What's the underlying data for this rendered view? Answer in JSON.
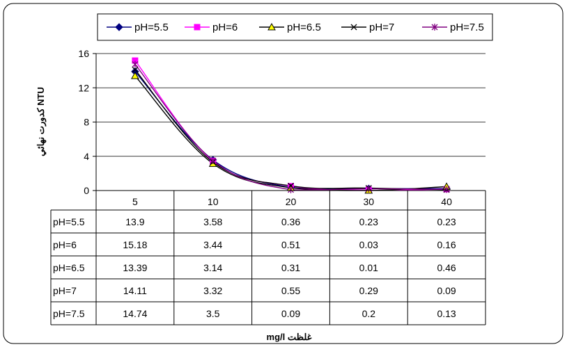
{
  "chart_data": {
    "type": "line",
    "categories": [
      "5",
      "10",
      "20",
      "30",
      "40"
    ],
    "ylabel": "NTU كدورت نهائي",
    "xlabel": "غلظت mg/l",
    "ylim": [
      0,
      16
    ],
    "yticks": [
      0,
      4,
      8,
      12,
      16
    ],
    "grid": true,
    "legend_position": "top",
    "series": [
      {
        "name": "pH=5.5",
        "values": [
          13.9,
          3.58,
          0.36,
          0.23,
          0.23
        ],
        "display": [
          "13.9",
          "3.58",
          "0.36",
          "0.23",
          "0.23"
        ],
        "color": "#000080",
        "marker": "diamond"
      },
      {
        "name": "pH=6",
        "values": [
          15.18,
          3.44,
          0.51,
          0.03,
          0.16
        ],
        "display": [
          "15.18",
          "3.44",
          "0.51",
          "0.03",
          "0.16"
        ],
        "color": "#FF00FF",
        "marker": "square"
      },
      {
        "name": "pH=6.5",
        "values": [
          13.39,
          3.14,
          0.31,
          0.01,
          0.46
        ],
        "display": [
          "13.39",
          "3.14",
          "0.31",
          "0.01",
          "0.46"
        ],
        "color": "#000000",
        "marker": "triangle",
        "marker_fill": "#FFFF00"
      },
      {
        "name": "pH=7",
        "values": [
          14.11,
          3.32,
          0.55,
          0.29,
          0.09
        ],
        "display": [
          "14.11",
          "3.32",
          "0.55",
          "0.29",
          "0.09"
        ],
        "color": "#000000",
        "marker": "x"
      },
      {
        "name": "pH=7.5",
        "values": [
          14.74,
          3.5,
          0.09,
          0.2,
          0.13
        ],
        "display": [
          "14.74",
          "3.5",
          "0.09",
          "0.2",
          "0.13"
        ],
        "color": "#800080",
        "marker": "star"
      }
    ]
  }
}
